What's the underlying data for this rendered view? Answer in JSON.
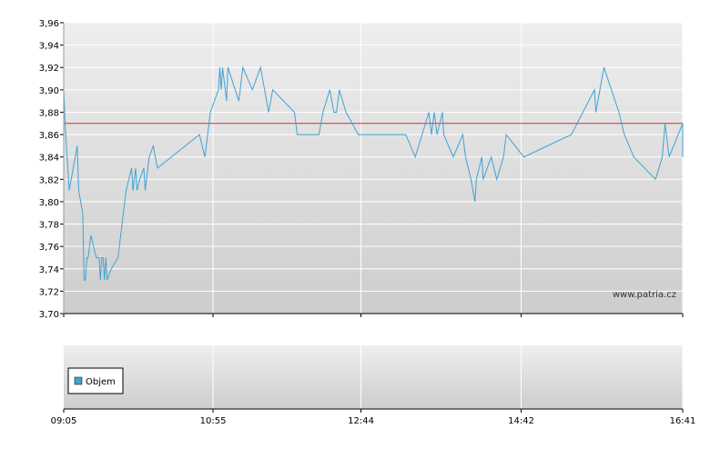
{
  "chart_data": [
    {
      "type": "line",
      "title": "",
      "xlabel": "",
      "ylabel": "",
      "ylim": [
        3.7,
        3.96
      ],
      "y_ticks": [
        "3,70",
        "3,72",
        "3,74",
        "3,76",
        "3,78",
        "3,80",
        "3,82",
        "3,84",
        "3,86",
        "3,88",
        "3,90",
        "3,92",
        "3,94",
        "3,96"
      ],
      "x_ticks": [
        "09:05",
        "10:55",
        "12:44",
        "14:42",
        "16:41"
      ],
      "grid": true,
      "reference_line": {
        "value": 3.87,
        "color": "#cc3333"
      },
      "watermark": "www.patria.cz",
      "series": [
        {
          "color": "#3fa3d4",
          "points": [
            [
              "09:05",
              3.92
            ],
            [
              "09:05",
              3.9
            ],
            [
              "09:06",
              3.87
            ],
            [
              "09:09",
              3.81
            ],
            [
              "09:15",
              3.85
            ],
            [
              "09:16",
              3.81
            ],
            [
              "09:19",
              3.79
            ],
            [
              "09:20",
              3.73
            ],
            [
              "09:21",
              3.73
            ],
            [
              "09:22",
              3.75
            ],
            [
              "09:23",
              3.75
            ],
            [
              "09:25",
              3.77
            ],
            [
              "09:29",
              3.75
            ],
            [
              "09:31",
              3.75
            ],
            [
              "09:32",
              3.73
            ],
            [
              "09:33",
              3.75
            ],
            [
              "09:34",
              3.75
            ],
            [
              "09:35",
              3.73
            ],
            [
              "09:36",
              3.75
            ],
            [
              "09:37",
              3.73
            ],
            [
              "09:40",
              3.74
            ],
            [
              "09:45",
              3.75
            ],
            [
              "09:49",
              3.79
            ],
            [
              "09:51",
              3.81
            ],
            [
              "09:53",
              3.82
            ],
            [
              "09:55",
              3.83
            ],
            [
              "09:56",
              3.81
            ],
            [
              "09:58",
              3.83
            ],
            [
              "09:59",
              3.81
            ],
            [
              "10:01",
              3.82
            ],
            [
              "10:04",
              3.83
            ],
            [
              "10:05",
              3.81
            ],
            [
              "10:08",
              3.84
            ],
            [
              "10:11",
              3.85
            ],
            [
              "10:14",
              3.83
            ],
            [
              "10:45",
              3.86
            ],
            [
              "10:49",
              3.84
            ],
            [
              "10:51",
              3.86
            ],
            [
              "10:53",
              3.88
            ],
            [
              "10:59",
              3.9
            ],
            [
              "11:00",
              3.92
            ],
            [
              "11:01",
              3.9
            ],
            [
              "11:02",
              3.92
            ],
            [
              "11:05",
              3.89
            ],
            [
              "11:06",
              3.92
            ],
            [
              "11:14",
              3.89
            ],
            [
              "11:17",
              3.92
            ],
            [
              "11:24",
              3.9
            ],
            [
              "11:30",
              3.92
            ],
            [
              "11:36",
              3.88
            ],
            [
              "11:39",
              3.9
            ],
            [
              "11:55",
              3.88
            ],
            [
              "11:57",
              3.86
            ],
            [
              "12:13",
              3.86
            ],
            [
              "12:16",
              3.88
            ],
            [
              "12:21",
              3.9
            ],
            [
              "12:24",
              3.88
            ],
            [
              "12:26",
              3.88
            ],
            [
              "12:28",
              3.9
            ],
            [
              "12:33",
              3.88
            ],
            [
              "12:42",
              3.86
            ],
            [
              "13:17",
              3.86
            ],
            [
              "13:24",
              3.84
            ],
            [
              "13:29",
              3.86
            ],
            [
              "13:34",
              3.88
            ],
            [
              "13:36",
              3.86
            ],
            [
              "13:38",
              3.88
            ],
            [
              "13:40",
              3.86
            ],
            [
              "13:44",
              3.88
            ],
            [
              "13:45",
              3.86
            ],
            [
              "13:52",
              3.84
            ],
            [
              "13:59",
              3.86
            ],
            [
              "14:01",
              3.84
            ],
            [
              "14:05",
              3.82
            ],
            [
              "14:08",
              3.8
            ],
            [
              "14:09",
              3.82
            ],
            [
              "14:13",
              3.84
            ],
            [
              "14:14",
              3.82
            ],
            [
              "14:20",
              3.84
            ],
            [
              "14:24",
              3.82
            ],
            [
              "14:29",
              3.84
            ],
            [
              "14:31",
              3.86
            ],
            [
              "14:44",
              3.84
            ],
            [
              "15:19",
              3.86
            ],
            [
              "15:36",
              3.9
            ],
            [
              "15:37",
              3.88
            ],
            [
              "15:43",
              3.92
            ],
            [
              "15:54",
              3.88
            ],
            [
              "15:58",
              3.86
            ],
            [
              "16:05",
              3.84
            ],
            [
              "16:21",
              3.82
            ],
            [
              "16:26",
              3.84
            ],
            [
              "16:28",
              3.87
            ],
            [
              "16:31",
              3.84
            ],
            [
              "16:41",
              3.87
            ],
            [
              "16:41",
              3.84
            ]
          ]
        }
      ]
    },
    {
      "type": "bar",
      "legend": [
        "Objem"
      ],
      "x_ticks": [
        "09:05",
        "10:55",
        "12:44",
        "14:42",
        "16:41"
      ],
      "grid": true,
      "series": [
        {
          "name": "Objem",
          "color": "#3fa3d4",
          "values": []
        }
      ]
    }
  ]
}
